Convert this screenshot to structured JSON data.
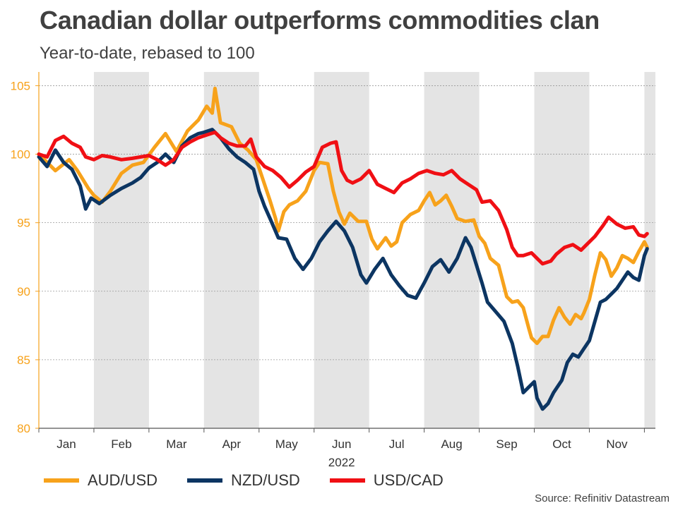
{
  "header": {
    "title": "Canadian dollar outperforms commodities clan",
    "subtitle": "Year-to-date, rebased to 100"
  },
  "source": "Source: Refinitiv Datastream",
  "colors": {
    "aud": "#f7a21b",
    "nzd": "#0c3562",
    "cad": "#f00f14",
    "band": "#e4e4e4",
    "grid": "#999999",
    "axis": "#f7a21b",
    "ytick": "#f7a21b"
  },
  "chart_data": {
    "type": "line",
    "title": "Canadian dollar outperforms commodities clan",
    "subtitle": "Year-to-date, rebased to 100",
    "xlabel": "2022",
    "ylabel": "",
    "ylim": [
      80,
      106
    ],
    "yticks": [
      80,
      85,
      90,
      95,
      100,
      105
    ],
    "x_months": [
      "Jan",
      "Feb",
      "Mar",
      "Apr",
      "May",
      "Jun",
      "Jul",
      "Aug",
      "Sep",
      "Oct",
      "Nov"
    ],
    "x_domain": [
      0,
      11.2
    ],
    "shaded_months": [
      1,
      3,
      5,
      7,
      9
    ],
    "grid": true,
    "legend": "bottom",
    "series": [
      {
        "name": "AUD/USD",
        "color": "#f7a21b",
        "points": [
          [
            0,
            100
          ],
          [
            0.3,
            98.8
          ],
          [
            0.55,
            99.6
          ],
          [
            0.7,
            98.8
          ],
          [
            0.9,
            97.5
          ],
          [
            1.0,
            97.0
          ],
          [
            1.15,
            96.5
          ],
          [
            1.3,
            97.3
          ],
          [
            1.5,
            98.6
          ],
          [
            1.7,
            99.2
          ],
          [
            1.9,
            99.4
          ],
          [
            2.1,
            100.5
          ],
          [
            2.3,
            101.5
          ],
          [
            2.5,
            100.2
          ],
          [
            2.7,
            101.7
          ],
          [
            2.9,
            102.5
          ],
          [
            3.05,
            103.5
          ],
          [
            3.15,
            103.0
          ],
          [
            3.2,
            104.8
          ],
          [
            3.3,
            102.3
          ],
          [
            3.5,
            102.0
          ],
          [
            3.65,
            100.8
          ],
          [
            3.8,
            100.3
          ],
          [
            3.95,
            99.6
          ],
          [
            4.1,
            97.8
          ],
          [
            4.2,
            96.6
          ],
          [
            4.3,
            95.3
          ],
          [
            4.35,
            94.4
          ],
          [
            4.45,
            95.8
          ],
          [
            4.55,
            96.3
          ],
          [
            4.7,
            96.6
          ],
          [
            4.85,
            97.3
          ],
          [
            5.0,
            98.8
          ],
          [
            5.1,
            99.4
          ],
          [
            5.25,
            99.3
          ],
          [
            5.35,
            97.3
          ],
          [
            5.45,
            95.8
          ],
          [
            5.55,
            94.9
          ],
          [
            5.65,
            95.7
          ],
          [
            5.8,
            95.1
          ],
          [
            5.95,
            95.1
          ],
          [
            6.05,
            93.8
          ],
          [
            6.15,
            93.1
          ],
          [
            6.3,
            93.9
          ],
          [
            6.4,
            93.3
          ],
          [
            6.5,
            93.6
          ],
          [
            6.6,
            95.0
          ],
          [
            6.75,
            95.6
          ],
          [
            6.9,
            95.9
          ],
          [
            7.0,
            96.6
          ],
          [
            7.1,
            97.2
          ],
          [
            7.2,
            96.3
          ],
          [
            7.3,
            96.6
          ],
          [
            7.4,
            97.0
          ],
          [
            7.5,
            96.2
          ],
          [
            7.6,
            95.3
          ],
          [
            7.75,
            95.1
          ],
          [
            7.9,
            95.2
          ],
          [
            8.0,
            94.0
          ],
          [
            8.1,
            93.5
          ],
          [
            8.2,
            92.4
          ],
          [
            8.35,
            91.9
          ],
          [
            8.5,
            89.6
          ],
          [
            8.6,
            89.2
          ],
          [
            8.7,
            89.3
          ],
          [
            8.8,
            88.8
          ],
          [
            8.9,
            87.3
          ],
          [
            8.95,
            86.6
          ],
          [
            9.05,
            86.2
          ],
          [
            9.15,
            86.7
          ],
          [
            9.25,
            86.7
          ],
          [
            9.35,
            87.9
          ],
          [
            9.45,
            88.8
          ],
          [
            9.55,
            88.1
          ],
          [
            9.65,
            87.6
          ],
          [
            9.75,
            88.3
          ],
          [
            9.85,
            88.0
          ],
          [
            9.9,
            88.4
          ],
          [
            10.0,
            89.4
          ],
          [
            10.1,
            91.2
          ],
          [
            10.2,
            92.8
          ],
          [
            10.3,
            92.3
          ],
          [
            10.4,
            91.1
          ],
          [
            10.5,
            91.7
          ],
          [
            10.6,
            92.6
          ],
          [
            10.7,
            92.4
          ],
          [
            10.8,
            92.1
          ],
          [
            10.9,
            92.9
          ],
          [
            11.0,
            93.6
          ],
          [
            11.05,
            93.2
          ]
        ]
      },
      {
        "name": "NZD/USD",
        "color": "#0c3562",
        "points": [
          [
            0,
            99.8
          ],
          [
            0.15,
            99.1
          ],
          [
            0.3,
            100.3
          ],
          [
            0.45,
            99.4
          ],
          [
            0.6,
            98.9
          ],
          [
            0.75,
            97.7
          ],
          [
            0.85,
            96.0
          ],
          [
            0.95,
            96.8
          ],
          [
            1.1,
            96.4
          ],
          [
            1.3,
            97.0
          ],
          [
            1.5,
            97.5
          ],
          [
            1.7,
            97.9
          ],
          [
            1.85,
            98.3
          ],
          [
            2.0,
            99.0
          ],
          [
            2.15,
            99.4
          ],
          [
            2.3,
            100.0
          ],
          [
            2.45,
            99.4
          ],
          [
            2.6,
            100.6
          ],
          [
            2.75,
            101.2
          ],
          [
            2.9,
            101.5
          ],
          [
            3.0,
            101.6
          ],
          [
            3.15,
            101.8
          ],
          [
            3.3,
            101.2
          ],
          [
            3.45,
            100.4
          ],
          [
            3.6,
            99.8
          ],
          [
            3.75,
            99.4
          ],
          [
            3.9,
            98.9
          ],
          [
            4.0,
            97.3
          ],
          [
            4.1,
            96.2
          ],
          [
            4.2,
            95.3
          ],
          [
            4.35,
            93.9
          ],
          [
            4.5,
            93.8
          ],
          [
            4.65,
            92.4
          ],
          [
            4.8,
            91.6
          ],
          [
            4.95,
            92.4
          ],
          [
            5.1,
            93.6
          ],
          [
            5.25,
            94.4
          ],
          [
            5.4,
            95.1
          ],
          [
            5.55,
            94.4
          ],
          [
            5.7,
            93.2
          ],
          [
            5.85,
            91.2
          ],
          [
            5.95,
            90.6
          ],
          [
            6.1,
            91.6
          ],
          [
            6.25,
            92.4
          ],
          [
            6.4,
            91.2
          ],
          [
            6.55,
            90.4
          ],
          [
            6.7,
            89.7
          ],
          [
            6.85,
            89.5
          ],
          [
            7.0,
            90.6
          ],
          [
            7.15,
            91.8
          ],
          [
            7.3,
            92.3
          ],
          [
            7.45,
            91.4
          ],
          [
            7.6,
            92.4
          ],
          [
            7.75,
            93.9
          ],
          [
            7.85,
            93.2
          ],
          [
            7.95,
            91.9
          ],
          [
            8.05,
            90.6
          ],
          [
            8.15,
            89.2
          ],
          [
            8.3,
            88.5
          ],
          [
            8.45,
            87.8
          ],
          [
            8.6,
            86.2
          ],
          [
            8.7,
            84.5
          ],
          [
            8.8,
            82.6
          ],
          [
            8.9,
            83.0
          ],
          [
            9.0,
            83.4
          ],
          [
            9.05,
            82.2
          ],
          [
            9.15,
            81.4
          ],
          [
            9.25,
            81.8
          ],
          [
            9.35,
            82.6
          ],
          [
            9.5,
            83.5
          ],
          [
            9.6,
            84.8
          ],
          [
            9.7,
            85.4
          ],
          [
            9.8,
            85.2
          ],
          [
            9.9,
            85.8
          ],
          [
            10.0,
            86.4
          ],
          [
            10.1,
            87.8
          ],
          [
            10.2,
            89.2
          ],
          [
            10.3,
            89.4
          ],
          [
            10.4,
            89.8
          ],
          [
            10.5,
            90.2
          ],
          [
            10.6,
            90.8
          ],
          [
            10.7,
            91.4
          ],
          [
            10.8,
            91.0
          ],
          [
            10.9,
            90.8
          ],
          [
            11.0,
            92.6
          ],
          [
            11.05,
            93.1
          ]
        ]
      },
      {
        "name": "USD/CAD",
        "color": "#f00f14",
        "points": [
          [
            0,
            100
          ],
          [
            0.15,
            99.8
          ],
          [
            0.3,
            101.0
          ],
          [
            0.45,
            101.3
          ],
          [
            0.6,
            100.8
          ],
          [
            0.75,
            100.5
          ],
          [
            0.85,
            99.8
          ],
          [
            1.0,
            99.6
          ],
          [
            1.15,
            99.9
          ],
          [
            1.3,
            99.8
          ],
          [
            1.5,
            99.6
          ],
          [
            1.7,
            99.7
          ],
          [
            1.85,
            99.8
          ],
          [
            2.0,
            99.9
          ],
          [
            2.15,
            99.6
          ],
          [
            2.3,
            99.2
          ],
          [
            2.45,
            99.6
          ],
          [
            2.6,
            100.5
          ],
          [
            2.75,
            100.9
          ],
          [
            2.9,
            101.2
          ],
          [
            3.05,
            101.4
          ],
          [
            3.2,
            101.6
          ],
          [
            3.3,
            101.2
          ],
          [
            3.45,
            100.8
          ],
          [
            3.6,
            100.6
          ],
          [
            3.75,
            100.6
          ],
          [
            3.85,
            101.1
          ],
          [
            3.95,
            99.8
          ],
          [
            4.1,
            99.1
          ],
          [
            4.25,
            98.8
          ],
          [
            4.4,
            98.3
          ],
          [
            4.55,
            97.6
          ],
          [
            4.7,
            98.1
          ],
          [
            4.85,
            98.7
          ],
          [
            5.0,
            99.1
          ],
          [
            5.15,
            100.5
          ],
          [
            5.3,
            100.8
          ],
          [
            5.4,
            100.9
          ],
          [
            5.5,
            98.8
          ],
          [
            5.6,
            98.1
          ],
          [
            5.7,
            97.9
          ],
          [
            5.85,
            98.2
          ],
          [
            6.0,
            98.8
          ],
          [
            6.15,
            97.8
          ],
          [
            6.3,
            97.5
          ],
          [
            6.45,
            97.2
          ],
          [
            6.6,
            97.9
          ],
          [
            6.75,
            98.2
          ],
          [
            6.9,
            98.6
          ],
          [
            7.05,
            98.8
          ],
          [
            7.2,
            98.6
          ],
          [
            7.35,
            98.5
          ],
          [
            7.5,
            98.8
          ],
          [
            7.65,
            98.2
          ],
          [
            7.8,
            97.8
          ],
          [
            7.95,
            97.4
          ],
          [
            8.05,
            96.5
          ],
          [
            8.2,
            96.6
          ],
          [
            8.35,
            95.9
          ],
          [
            8.5,
            94.5
          ],
          [
            8.6,
            93.2
          ],
          [
            8.7,
            92.6
          ],
          [
            8.8,
            92.6
          ],
          [
            8.95,
            92.8
          ],
          [
            9.05,
            92.4
          ],
          [
            9.15,
            92.0
          ],
          [
            9.3,
            92.2
          ],
          [
            9.4,
            92.7
          ],
          [
            9.55,
            93.2
          ],
          [
            9.7,
            93.4
          ],
          [
            9.85,
            93.0
          ],
          [
            9.95,
            93.4
          ],
          [
            10.1,
            94.0
          ],
          [
            10.25,
            94.8
          ],
          [
            10.35,
            95.4
          ],
          [
            10.5,
            94.9
          ],
          [
            10.65,
            94.6
          ],
          [
            10.8,
            94.7
          ],
          [
            10.9,
            94.1
          ],
          [
            11.0,
            94.0
          ],
          [
            11.05,
            94.2
          ]
        ]
      }
    ]
  }
}
